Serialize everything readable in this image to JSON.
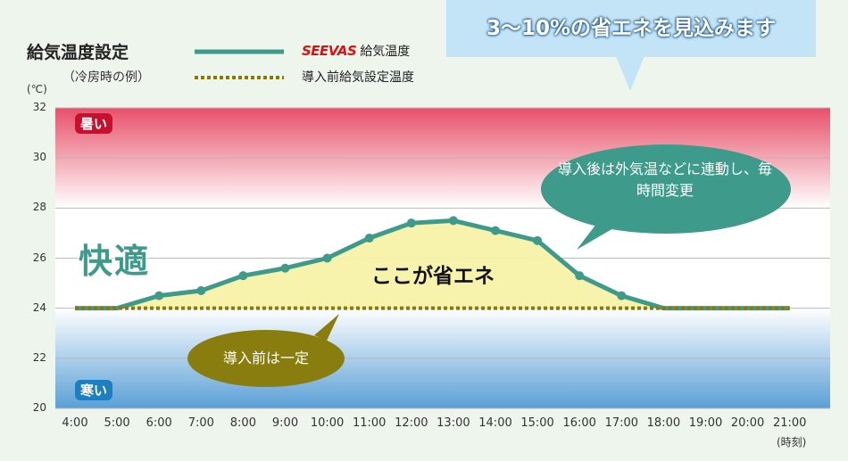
{
  "title": "給気温度設定",
  "subtitle": "（冷房時の例）",
  "unit_label": "(℃)",
  "x_unit_label": "(時刻)",
  "legend": {
    "seevas_brand": "SEEVAS",
    "seevas_label": "給気温度",
    "before_label": "導入前給気設定温度"
  },
  "callout": "3〜10%の省エネを見込みます",
  "zones": {
    "hot": "暑い",
    "comfort": "快適",
    "cold": "寒い"
  },
  "savings_label": "ここが省エネ",
  "bubble_after": "導入後は外気温などに連動し、毎時間変更",
  "bubble_before": "導入前は一定",
  "colors": {
    "seevas_line": "#3e9a8b",
    "before_line": "#8a7a00",
    "savings_fill": "#f7f1a8",
    "hot_zone": "#e8506a",
    "cold_zone": "#5a9fd6",
    "bubble_after": "#3e9a8b",
    "bubble_before": "#8a7d0f"
  },
  "chart_data": {
    "type": "line",
    "categories": [
      "4:00",
      "5:00",
      "6:00",
      "7:00",
      "8:00",
      "9:00",
      "10:00",
      "11:00",
      "12:00",
      "13:00",
      "14:00",
      "15:00",
      "16:00",
      "17:00",
      "18:00",
      "19:00",
      "20:00",
      "21:00"
    ],
    "ylim": [
      20,
      32
    ],
    "yticks": [
      20,
      22,
      24,
      26,
      28,
      30,
      32
    ],
    "series": [
      {
        "name": "SEEVAS 給気温度",
        "values": [
          24,
          24,
          24.5,
          24.7,
          25.3,
          25.6,
          26,
          26.8,
          27.4,
          27.5,
          27.1,
          26.7,
          25.3,
          24.5,
          24,
          24,
          24,
          24
        ],
        "markers": [
          false,
          false,
          true,
          true,
          true,
          true,
          true,
          true,
          true,
          true,
          true,
          true,
          true,
          true,
          false,
          false,
          false,
          false
        ]
      },
      {
        "name": "導入前給気設定温度",
        "values": [
          24,
          24,
          24,
          24,
          24,
          24,
          24,
          24,
          24,
          24,
          24,
          24,
          24,
          24,
          24,
          24,
          24,
          24
        ]
      }
    ],
    "grid": true
  }
}
